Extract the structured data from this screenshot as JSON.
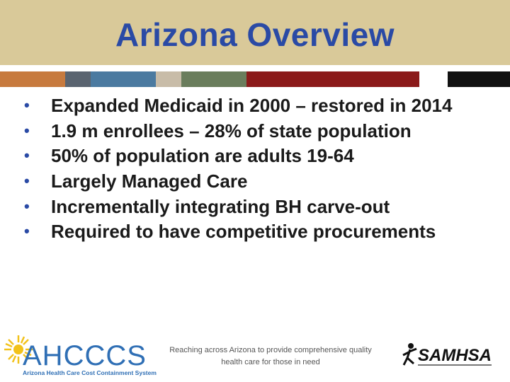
{
  "slide": {
    "title": "Arizona Overview",
    "bullets": [
      "Expanded Medicaid in 2000 – restored in 2014",
      "1.9 m enrollees – 28% of state population",
      "50% of population are adults 19-64",
      "Largely Managed Care",
      "Incrementally integrating BH carve-out",
      "Required to have competitive procurements"
    ],
    "footer_text": "Reaching across Arizona to provide comprehensive quality health care for those in need"
  },
  "logos": {
    "left_name": "AHCCCS",
    "left_tagline": "Arizona Health Care Cost Containment System",
    "right_name": "SAMHSA"
  },
  "colors": {
    "title_band": "#d9c999",
    "title_text": "#2a4aa5",
    "bullet_marker": "#2a4aa5",
    "stripe": [
      "#c77a3e",
      "#5a6470",
      "#4b7aa0",
      "#c8bca8",
      "#6a7d5c",
      "#8b1a1a",
      "#ffffff",
      "#111111"
    ]
  }
}
